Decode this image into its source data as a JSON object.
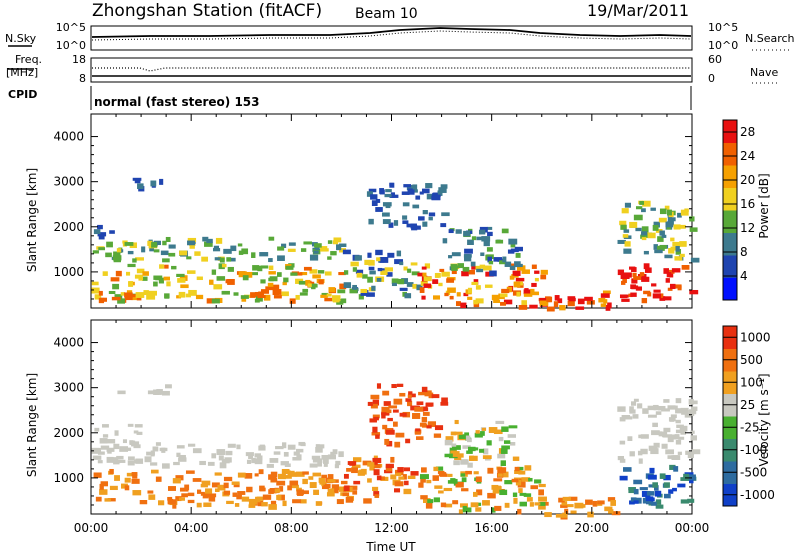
{
  "header": {
    "station": "Zhongshan Station (fitACF)",
    "beam": "Beam 10",
    "date": "19/Mar/2011"
  },
  "top_panels": {
    "nsky_label": "N.Sky",
    "nsky_ticks": [
      "10^5",
      "10^0"
    ],
    "nsearch_label": "N.Search",
    "nsearch_ticks": [
      "10^5",
      "10^0"
    ],
    "freq_label_1": "Freq.",
    "freq_label_2": "[MHz]",
    "freq_ticks": [
      "18",
      "8"
    ],
    "nave_label": "Nave",
    "nave_ticks": [
      "60",
      "0"
    ],
    "cpid_label": "CPID",
    "cpid_text": "normal (fast stereo) 153"
  },
  "colors": {
    "power_scale": [
      "#0010ff",
      "#1f44b0",
      "#3d7a8e",
      "#58a838",
      "#f0d020",
      "#f5a000",
      "#f06000",
      "#e81010"
    ],
    "velocity_scale": [
      "#1040c8",
      "#2e6ca0",
      "#3a8a6e",
      "#48b030",
      "#c8c8c0",
      "#f0a020",
      "#f07010",
      "#e83010"
    ]
  },
  "chart_data": [
    {
      "type": "heatmap",
      "panel": "power",
      "ylabel": "Slant Range [km]",
      "xlabel": "",
      "y_ticks": [
        "1000",
        "2000",
        "3000",
        "4000"
      ],
      "x_ticks": [
        "00:00",
        "04:00",
        "08:00",
        "12:00",
        "16:00",
        "20:00",
        "00:00"
      ],
      "xlim": [
        0,
        24
      ],
      "ylim": [
        200,
        4500
      ],
      "colorbar_label": "Power [dB]",
      "colorbar_ticks": [
        "4",
        "8",
        "12",
        "16",
        "20",
        "24",
        "28"
      ],
      "colorbar_range": [
        0,
        30
      ]
    },
    {
      "type": "heatmap",
      "panel": "velocity",
      "ylabel": "Slant Range [km]",
      "xlabel": "Time UT",
      "y_ticks": [
        "1000",
        "2000",
        "3000",
        "4000"
      ],
      "x_ticks": [
        "00:00",
        "04:00",
        "08:00",
        "12:00",
        "16:00",
        "20:00",
        "00:00"
      ],
      "xlim": [
        0,
        24
      ],
      "ylim": [
        200,
        4500
      ],
      "colorbar_label": "Velocity [m s⁻¹]",
      "colorbar_ticks": [
        "1000",
        "500",
        "100",
        "25",
        "-25",
        "-100",
        "-500",
        "-1000"
      ]
    }
  ]
}
